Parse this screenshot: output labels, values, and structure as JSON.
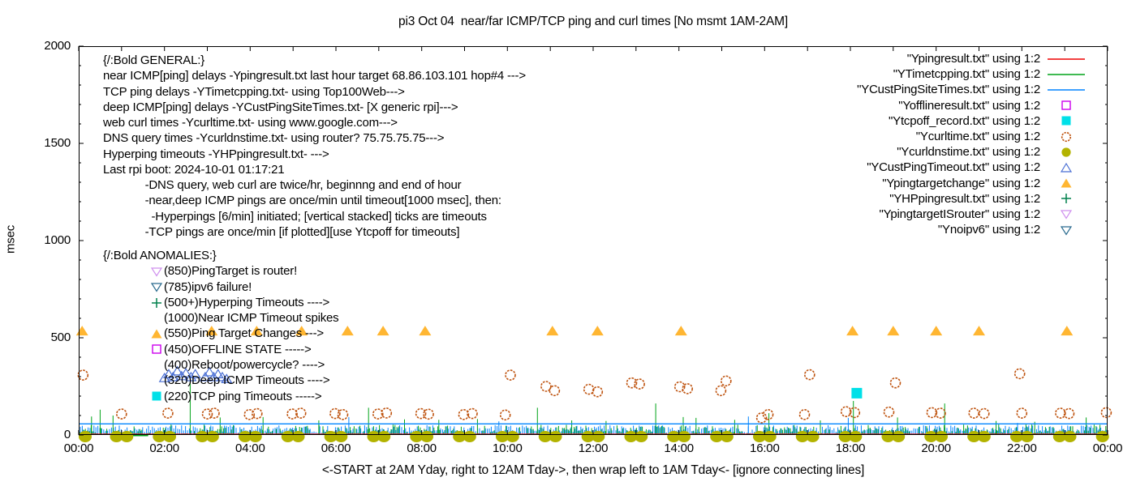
{
  "title": "pi3 Oct 04  near/far ICMP/TCP ping and curl times [No msmt 1AM-2AM]",
  "axis": {
    "ylabel": "msec",
    "xlabel": "<-START at 2AM Yday, right to 12AM Tday->, then wrap left to 1AM Tday<- [ignore connecting lines]"
  },
  "general": {
    "lines": [
      "{/:Bold GENERAL:}",
      "near ICMP[ping] delays -Ypingresult.txt last hour target 68.86.103.101 hop#4 --->",
      "TCP ping delays -YTimetcpping.txt- using Top100Web--->",
      "deep ICMP[ping] delays -YCustPingSiteTimes.txt- [X generic rpi]--->",
      "web curl times -Ycurltime.txt- using www.google.com--->",
      "DNS query times -Ycurldnstime.txt- using router? 75.75.75.75--->",
      "Hyperping timeouts -YHPpingresult.txt- --->",
      "Last rpi boot: 2024-10-01 01:17:21",
      "             -DNS query, web curl are twice/hr, beginnng and end of hour",
      "             -near,deep ICMP pings are once/min until timeout[1000 msec], then:",
      "               -Hyperpings [6/min] initiated; [vertical stacked] ticks are timeouts",
      "             -TCP pings are once/min [if plotted][use Ytcpoff for timeouts]"
    ]
  },
  "anomalies": {
    "lines": [
      {
        "marker": "none-header",
        "text": "{/:Bold ANOMALIES:}"
      },
      {
        "marker": "tri-down-open-violet",
        "text": "(850)PingTarget is router!"
      },
      {
        "marker": "tri-down-open-teal",
        "text": "(785)ipv6 failure!"
      },
      {
        "marker": "plus-green",
        "text": "(500+)Hyperping Timeouts ---->"
      },
      {
        "marker": "none",
        "text": "(1000)Near ICMP Timeout spikes"
      },
      {
        "marker": "tri-up-fill-orange",
        "text": "(550)Ping Target Changes --->"
      },
      {
        "marker": "sq-open-magenta",
        "text": "(450)OFFLINE STATE ----->"
      },
      {
        "marker": "none",
        "text": "(400)Reboot/powercycle? ---->"
      },
      {
        "marker": "none",
        "text": "(320)Deep ICMP Timeouts ---->"
      },
      {
        "marker": "sq-fill-cyan",
        "text": "(220)TCP ping Timeouts ----->"
      }
    ]
  },
  "legend": {
    "items": [
      {
        "label": "\"Ypingresult.txt\" using 1:2",
        "sample": "line-red"
      },
      {
        "label": "\"YTimetcpping.txt\" using 1:2",
        "sample": "line-green"
      },
      {
        "label": "\"YCustPingSiteTimes.txt\" using 1:2",
        "sample": "line-blue"
      },
      {
        "label": "\"Yofflineresult.txt\" using 1:2",
        "sample": "sq-open-magenta"
      },
      {
        "label": "\"Ytcpoff_record.txt\" using 1:2",
        "sample": "sq-fill-cyan"
      },
      {
        "label": "\"Ycurltime.txt\" using 1:2",
        "sample": "circ-open-orange"
      },
      {
        "label": "\"Ycurldnstime.txt\" using 1:2",
        "sample": "circ-fill-olive"
      },
      {
        "label": "\"YCustPingTimeout.txt\" using 1:2",
        "sample": "tri-up-open-blue"
      },
      {
        "label": "\"Ypingtargetchange\" using 1:2",
        "sample": "tri-up-fill-orange"
      },
      {
        "label": "\"YHPpingresult.txt\" using 1:2",
        "sample": "plus-green"
      },
      {
        "label": "\"YpingtargetISrouter\" using 1:2",
        "sample": "tri-down-open-violet"
      },
      {
        "label": "\"Ynoipv6\" using 1:2",
        "sample": "tri-down-open-teal"
      }
    ]
  },
  "chart_data": {
    "type": "scatter",
    "x_axis": {
      "range_hours": [
        0,
        24
      ],
      "tick_hours": [
        0,
        2,
        4,
        6,
        8,
        10,
        12,
        14,
        16,
        18,
        20,
        22,
        24
      ],
      "tick_labels": [
        "00:00",
        "02:00",
        "04:00",
        "06:00",
        "08:00",
        "10:00",
        "12:00",
        "14:00",
        "16:00",
        "18:00",
        "20:00",
        "22:00",
        "00:00"
      ],
      "minor_tick_every_hours": 1
    },
    "y_axis": {
      "range_msec": [
        0,
        2000
      ],
      "tick_values": [
        0,
        500,
        1000,
        1500,
        2000
      ],
      "tick_labels": [
        "0",
        "500",
        "1000",
        "1500",
        "2000"
      ],
      "minor_tick_every": 100
    },
    "colors": {
      "red_line": "#ee0000",
      "green_line": "#00a418",
      "blue_line": "#0084ff",
      "offline_magenta": "#cc00ee",
      "tcpoff_cyan": "#00e0e8",
      "curl_orange": "#bf5410",
      "dns_olive": "#b3b300",
      "timeout_blue": "#4a6fd4",
      "target_orange": "#ffb632",
      "hp_green": "#00804d",
      "router_violet": "#cf90ee",
      "noipv6_teal": "#2a6b8f"
    },
    "baseline_red": {
      "series": "Ypingresult.txt",
      "msec": 4,
      "note": "flat near-0 line full width"
    },
    "noise_band": {
      "series": [
        "YTimetcpping.txt",
        "YCustPingSiteTimes.txt"
      ],
      "min_msec": 0,
      "max_msec": 55,
      "note": "dense green+blue jitter spikes across full 24h width"
    },
    "blue_flat_line": {
      "series": "YCustPingSiteTimes.txt",
      "msec": 57
    },
    "green_flat_segment": {
      "series": "YTimetcpping.txt",
      "from_h": 0.87,
      "to_h": 1.62,
      "msec": 0
    },
    "green_spikes": [
      [
        0.3,
        95
      ],
      [
        0.5,
        130
      ],
      [
        0.8,
        100
      ],
      [
        2.6,
        300
      ],
      [
        3.3,
        90
      ],
      [
        4.3,
        92
      ],
      [
        5.6,
        75
      ],
      [
        6.76,
        140
      ],
      [
        7.6,
        80
      ],
      [
        8.4,
        78
      ],
      [
        9.3,
        82
      ],
      [
        10.7,
        140
      ],
      [
        11.5,
        75
      ],
      [
        12.3,
        72
      ],
      [
        13.46,
        162
      ],
      [
        14.1,
        92
      ],
      [
        14.4,
        88
      ],
      [
        15.3,
        78
      ],
      [
        16.1,
        112
      ],
      [
        17.3,
        75
      ],
      [
        18.07,
        175
      ],
      [
        19.1,
        90
      ],
      [
        20.2,
        162
      ],
      [
        21.4,
        72
      ],
      [
        22.3,
        68
      ],
      [
        23.5,
        90
      ]
    ],
    "blue_spikes": [
      [
        6.3,
        92
      ],
      [
        9.8,
        70
      ],
      [
        15.62,
        95
      ],
      [
        17.95,
        88
      ],
      [
        21.9,
        62
      ]
    ],
    "curl_circles": {
      "series": "Ycurltime.txt",
      "points": [
        [
          0.1,
          308
        ],
        [
          1.0,
          108
        ],
        [
          2.08,
          112
        ],
        [
          3.0,
          108
        ],
        [
          3.16,
          112
        ],
        [
          3.98,
          105
        ],
        [
          4.16,
          110
        ],
        [
          4.98,
          108
        ],
        [
          5.18,
          112
        ],
        [
          5.98,
          110
        ],
        [
          6.16,
          105
        ],
        [
          6.98,
          108
        ],
        [
          7.18,
          113
        ],
        [
          7.98,
          110
        ],
        [
          8.16,
          107
        ],
        [
          8.98,
          105
        ],
        [
          9.18,
          110
        ],
        [
          9.95,
          103
        ],
        [
          10.07,
          308
        ],
        [
          10.9,
          250
        ],
        [
          11.1,
          228
        ],
        [
          11.9,
          235
        ],
        [
          12.1,
          222
        ],
        [
          12.9,
          268
        ],
        [
          13.08,
          262
        ],
        [
          14.02,
          248
        ],
        [
          14.2,
          238
        ],
        [
          14.98,
          228
        ],
        [
          15.1,
          278
        ],
        [
          15.93,
          88
        ],
        [
          16.08,
          105
        ],
        [
          16.93,
          105
        ],
        [
          17.05,
          310
        ],
        [
          17.9,
          120
        ],
        [
          18.1,
          115
        ],
        [
          18.9,
          118
        ],
        [
          19.05,
          268
        ],
        [
          19.9,
          115
        ],
        [
          20.1,
          112
        ],
        [
          20.88,
          112
        ],
        [
          21.12,
          110
        ],
        [
          21.95,
          315
        ],
        [
          22.0,
          112
        ],
        [
          22.9,
          112
        ],
        [
          23.1,
          110
        ],
        [
          23.97,
          115
        ]
      ]
    },
    "dns_circles": {
      "series": "Ycurldnstime.txt",
      "msec": 0,
      "hours": [
        0,
        1,
        2,
        3,
        4,
        5,
        6,
        7,
        8,
        9,
        10,
        11,
        12,
        13,
        14,
        15,
        16,
        17,
        18,
        19,
        20,
        21,
        22,
        23,
        24
      ],
      "pair_offset_h": 0.12
    },
    "ping_target_changes": {
      "series": "Ypingtargetchange",
      "msec": 535,
      "hours": [
        0.08,
        3.1,
        4.15,
        5.2,
        6.27,
        7.1,
        8.08,
        11.05,
        12.1,
        14.05,
        18.05,
        19.0,
        20.0,
        21.0,
        23.05
      ]
    },
    "deep_icmp_timeouts": {
      "series": "YCustPingTimeout.txt",
      "points": [
        [
          2.0,
          295
        ],
        [
          2.1,
          315
        ],
        [
          2.2,
          300
        ],
        [
          2.3,
          330
        ],
        [
          2.4,
          305
        ],
        [
          2.5,
          320
        ],
        [
          2.62,
          300
        ],
        [
          2.72,
          315
        ],
        [
          2.95,
          300
        ],
        [
          3.05,
          325
        ],
        [
          3.15,
          300
        ],
        [
          3.25,
          315
        ],
        [
          3.35,
          300
        ],
        [
          3.45,
          290
        ]
      ]
    },
    "tcp_timeout_square": {
      "series": "Ytcpoff_record.txt",
      "point": [
        18.15,
        215
      ]
    }
  }
}
